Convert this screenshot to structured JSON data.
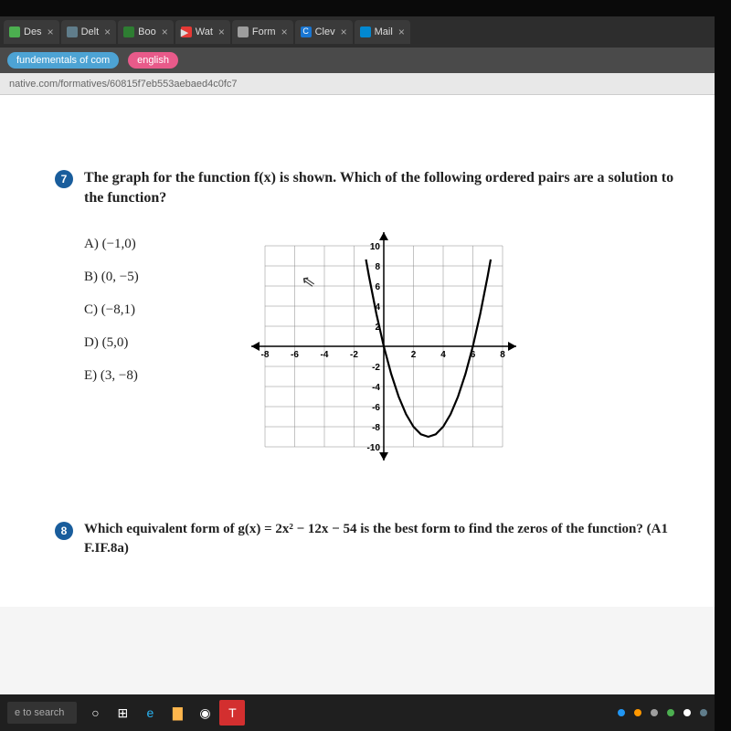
{
  "browser": {
    "tabs": [
      {
        "label": "Des",
        "favicon": "#4caf50"
      },
      {
        "label": "Delt",
        "favicon": "#607d8b"
      },
      {
        "label": "Boo",
        "favicon": "#2e7d32"
      },
      {
        "label": "Wat",
        "favicon": "#e53935"
      },
      {
        "label": "Form",
        "favicon": "#9e9e9e"
      },
      {
        "label": "Clev",
        "favicon": "#1976d2"
      },
      {
        "label": "Mail",
        "favicon": "#0288d1"
      }
    ],
    "bookmarks": [
      {
        "label": "fundementals of com",
        "bg": "#4da3d4"
      },
      {
        "label": "english",
        "bg": "#e85a8a"
      }
    ],
    "url": "native.com/formatives/60815f7eb553aebaed4c0fc7"
  },
  "question7": {
    "number": "7",
    "prompt": "The graph for the function f(x) is shown. Which of the following ordered pairs are a solution to the function?",
    "choices": {
      "a": "A) (−1,0)",
      "b": "B) (0, −5)",
      "c": "C) (−8,1)",
      "d": "D) (5,0)",
      "e": "E) (3, −8)"
    }
  },
  "question8": {
    "number": "8",
    "prompt_html": "Which equivalent form of g(x) = 2x² − 12x − 54 is the best form to find the zeros of the function? (A1  F.IF.8a)"
  },
  "graph": {
    "type": "line",
    "xlim": [
      -8,
      8
    ],
    "ylim": [
      -10,
      10
    ],
    "xtick_step": 2,
    "ytick_step": 2,
    "x_labels": [
      "-8",
      "-6",
      "-4",
      "-2",
      "2",
      "4",
      "6",
      "8"
    ],
    "y_labels": [
      "10",
      "8",
      "6",
      "4",
      "2",
      "-2",
      "-4",
      "-6",
      "-8",
      "-10"
    ],
    "grid_color": "#888888",
    "axis_color": "#000000",
    "background_color": "#ffffff",
    "curve_color": "#000000",
    "curve_width": 2.2,
    "vertex": [
      3,
      -9
    ],
    "roots": [
      0,
      6
    ],
    "points": [
      [
        -1.2,
        8.64
      ],
      [
        -1,
        7
      ],
      [
        -0.5,
        3.25
      ],
      [
        0,
        0
      ],
      [
        0.5,
        -2.75
      ],
      [
        1,
        -5
      ],
      [
        1.5,
        -6.75
      ],
      [
        2,
        -8
      ],
      [
        2.5,
        -8.75
      ],
      [
        3,
        -9
      ],
      [
        3.5,
        -8.75
      ],
      [
        4,
        -8
      ],
      [
        4.5,
        -6.75
      ],
      [
        5,
        -5
      ],
      [
        5.5,
        -2.75
      ],
      [
        6,
        0
      ],
      [
        6.5,
        3.25
      ],
      [
        7,
        7
      ],
      [
        7.2,
        8.64
      ]
    ]
  },
  "taskbar": {
    "search_placeholder": "e to search",
    "icons": [
      {
        "name": "cortana-icon",
        "glyph": "○",
        "color": "#ffffff"
      },
      {
        "name": "taskview-icon",
        "glyph": "⊞",
        "color": "#ffffff"
      },
      {
        "name": "edge-icon",
        "glyph": "e",
        "color": "#29b6f6"
      },
      {
        "name": "folder-icon",
        "glyph": "▇",
        "color": "#ffb74d"
      },
      {
        "name": "chrome-icon",
        "glyph": "◉",
        "color": "#ffffff"
      },
      {
        "name": "teams-icon",
        "glyph": "T",
        "color": "#ffffff",
        "bg": "#d32f2f"
      }
    ],
    "tray_dots": [
      "#2196f3",
      "#ff9800",
      "#9e9e9e",
      "#4caf50",
      "#ffffff",
      "#607d8b"
    ]
  },
  "colors": {
    "qnum_bg": "#195d9c",
    "page_bg": "#ffffff",
    "desk_bg": "#1a1a1a"
  }
}
